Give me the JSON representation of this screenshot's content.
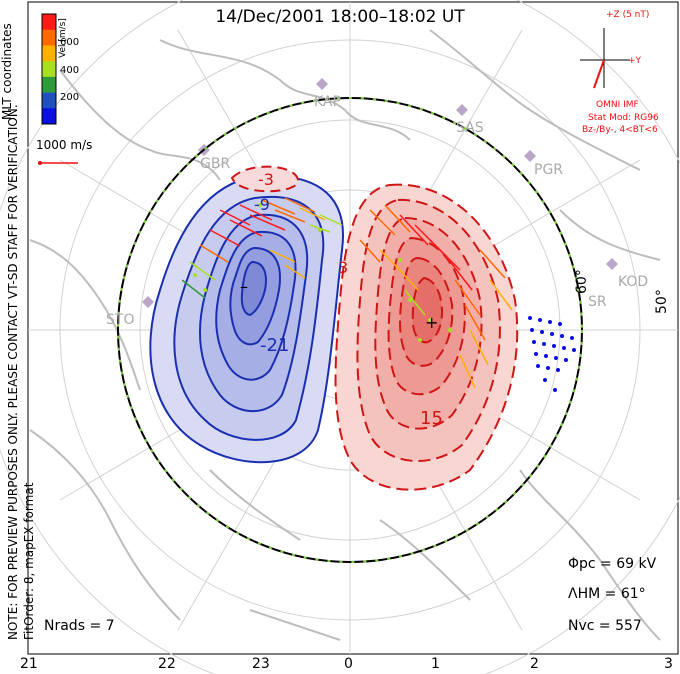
{
  "title": "14/Dec/2001  18:00–18:02  UT",
  "side_labels": {
    "coords": "MLT coordinates",
    "note": "NOTE: FOR PREVIEW PURPOSES ONLY. PLEASE CONTACT VT-SD STAFF FOR VERIFICATION.",
    "fit": "FitOrder: 8,  mapEX format"
  },
  "colorbar": {
    "unit_label": "Vel [m/s]",
    "ticks": [
      "600",
      "400",
      "200"
    ],
    "colors": [
      "#ff1a1a",
      "#ff6a00",
      "#ffb000",
      "#a8e020",
      "#2e9a3a",
      "#2050c0",
      "#0a10e0"
    ]
  },
  "reference_vector": {
    "label": "1000 m/s",
    "color": "#e11"
  },
  "imf": {
    "bz_label": "+Z (5 nT)",
    "by_label": "+Y",
    "source": "OMNI IMF",
    "model": "Stat Mod: RG96",
    "condition": "Bz-/By-, 4<BT<6",
    "color": "#e11"
  },
  "radar_sites": [
    "KAP",
    "SAS",
    "PGR",
    "GBR",
    "KOD",
    "STO",
    "SR"
  ],
  "latitude_labels": [
    "60°",
    "50°"
  ],
  "contour_labels": {
    "negative": [
      "-3",
      "-9",
      "-21"
    ],
    "positive": [
      "3",
      "15"
    ]
  },
  "stats": {
    "phi_pc": "Φpc  =  69  kV",
    "lambda_hm": "ΛHM  =  61°",
    "n_vc": "Nvc  =  557",
    "n_rads": "Nrads  =  7"
  },
  "mlt_axis": [
    "21",
    "22",
    "23",
    "0",
    "1",
    "2",
    "3"
  ],
  "colors": {
    "negative_contour": "#1a2fb0",
    "positive_contour": "#d01515",
    "negative_fill": "#c8ccf0",
    "positive_fill": "#f6c8c4",
    "continents": "#bdbdbd",
    "grid": "#cfcfcf",
    "hmb_dash": "#7ed040"
  }
}
